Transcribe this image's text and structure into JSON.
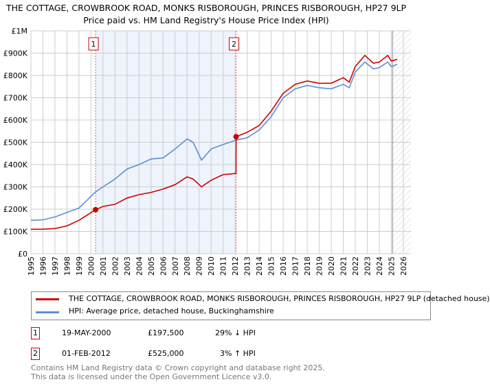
{
  "title": "THE COTTAGE, CROWBROOK ROAD, MONKS RISBOROUGH, PRINCES RISBOROUGH, HP27 9LP",
  "subtitle": "Price paid vs. HM Land Registry's House Price Index (HPI)",
  "chart_data": {
    "type": "line",
    "xlim": [
      1995,
      2026
    ],
    "ylim": [
      0,
      1000000
    ],
    "x_ticks": [
      "1995",
      "1996",
      "1997",
      "1998",
      "1999",
      "2000",
      "2001",
      "2002",
      "2003",
      "2004",
      "2005",
      "2006",
      "2007",
      "2008",
      "2009",
      "2010",
      "2011",
      "2012",
      "2013",
      "2014",
      "2015",
      "2016",
      "2017",
      "2018",
      "2019",
      "2020",
      "2021",
      "2022",
      "2023",
      "2024",
      "2025",
      "2026"
    ],
    "y_ticks": [
      {
        "v": 0,
        "label": "£0"
      },
      {
        "v": 100000,
        "label": "£100K"
      },
      {
        "v": 200000,
        "label": "£200K"
      },
      {
        "v": 300000,
        "label": "£300K"
      },
      {
        "v": 400000,
        "label": "£400K"
      },
      {
        "v": 500000,
        "label": "£500K"
      },
      {
        "v": 600000,
        "label": "£600K"
      },
      {
        "v": 700000,
        "label": "£700K"
      },
      {
        "v": 800000,
        "label": "£800K"
      },
      {
        "v": 900000,
        "label": "£900K"
      },
      {
        "v": 1000000,
        "label": "£1M"
      }
    ],
    "series": [
      {
        "name": "THE COTTAGE, CROWBROOK ROAD, MONKS RISBOROUGH, PRINCES RISBOROUGH, HP27 9LP (detached house)",
        "color": "#cc0000",
        "x": [
          1995,
          1996,
          1997,
          1998,
          1999,
          2000.38,
          2001,
          2002,
          2003,
          2004,
          2005,
          2006,
          2007,
          2008,
          2008.5,
          2009.2,
          2010,
          2011,
          2012.07,
          2012.08,
          2013,
          2014,
          2015,
          2016,
          2017,
          2018,
          2019,
          2020,
          2021,
          2021.5,
          2022,
          2022.8,
          2023.5,
          2024,
          2024.7,
          2025,
          2025.5
        ],
        "y": [
          110000,
          110000,
          113000,
          125000,
          150000,
          197500,
          212000,
          222000,
          250000,
          265000,
          275000,
          290000,
          310000,
          345000,
          335000,
          300000,
          330000,
          355000,
          360000,
          525000,
          545000,
          575000,
          640000,
          720000,
          760000,
          775000,
          765000,
          765000,
          790000,
          770000,
          840000,
          890000,
          855000,
          860000,
          890000,
          865000,
          872000
        ]
      },
      {
        "name": "HPI: Average price, detached house, Buckinghamshire",
        "color": "#5b8fd0",
        "x": [
          1995,
          1996,
          1997,
          1998,
          1999,
          2000.38,
          2001,
          2002,
          2003,
          2004,
          2005,
          2006,
          2007,
          2008,
          2008.5,
          2009.2,
          2010,
          2011,
          2012.08,
          2013,
          2014,
          2015,
          2016,
          2017,
          2018,
          2019,
          2020,
          2021,
          2021.5,
          2022,
          2022.8,
          2023.5,
          2024,
          2024.7,
          2025,
          2025.5
        ],
        "y": [
          150000,
          152000,
          165000,
          185000,
          205000,
          277000,
          300000,
          335000,
          380000,
          400000,
          425000,
          430000,
          470000,
          515000,
          500000,
          420000,
          470000,
          490000,
          510000,
          520000,
          555000,
          615000,
          700000,
          740000,
          755000,
          745000,
          740000,
          760000,
          745000,
          815000,
          860000,
          830000,
          835000,
          860000,
          840000,
          850000
        ]
      }
    ],
    "sales": [
      {
        "label": "1",
        "x": 2000.38,
        "y": 197500
      },
      {
        "label": "2",
        "x": 2012.08,
        "y": 525000
      }
    ]
  },
  "legend": {
    "items": [
      "THE COTTAGE, CROWBROOK ROAD, MONKS RISBOROUGH, PRINCES RISBOROUGH, HP27 9LP (detached house)",
      "HPI: Average price, detached house, Buckinghamshire"
    ]
  },
  "transactions": [
    {
      "num": "1",
      "date": "19-MAY-2000",
      "price": "£197,500",
      "hpi": "29% ↓ HPI"
    },
    {
      "num": "2",
      "date": "01-FEB-2012",
      "price": "£525,000",
      "hpi": "3% ↑ HPI"
    }
  ],
  "footer": [
    "Contains HM Land Registry data © Crown copyright and database right 2025.",
    "This data is licensed under the Open Government Licence v3.0."
  ]
}
